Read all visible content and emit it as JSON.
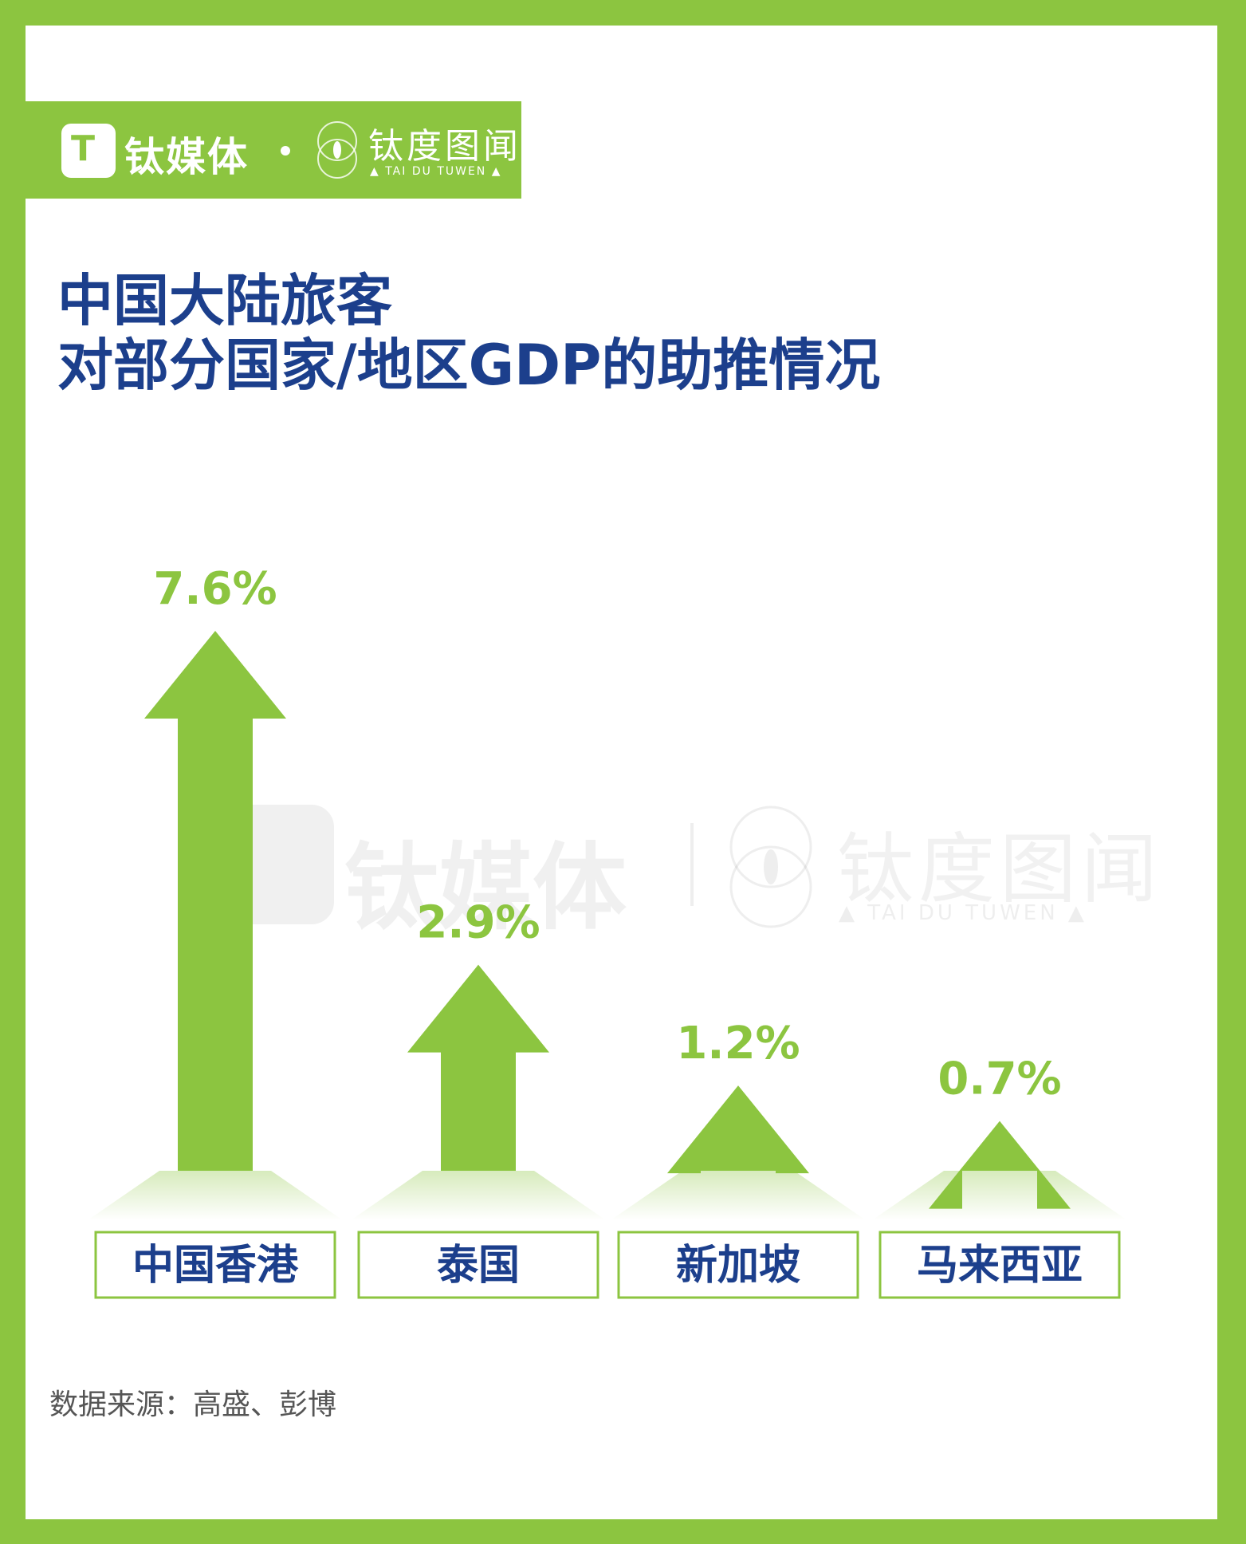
{
  "brand": {
    "name": "钛媒体",
    "logo_glyph": "T",
    "partner_name": "钛度图闻",
    "partner_sub": "▲ TAI DU TUWEN ▲"
  },
  "title": {
    "line1": "中国大陆旅客",
    "line2": "对部分国家/地区GDP的助推情况"
  },
  "watermark": {
    "brand": "钛媒体",
    "partner": "钛度图闻",
    "partner_sub": "▲ TAI DU TUWEN ▲"
  },
  "chart_data": {
    "type": "bar",
    "title": "中国大陆旅客 对部分国家/地区GDP的助推情况",
    "categories": [
      "中国香港",
      "泰国",
      "新加坡",
      "马来西亚"
    ],
    "values": [
      7.6,
      2.9,
      1.2,
      0.7
    ],
    "value_labels": [
      "7.6%",
      "2.9%",
      "1.2%",
      "0.7%"
    ],
    "unit": "%",
    "ylim": [
      0,
      7.6
    ],
    "grid": false,
    "legend": "none"
  },
  "source": "数据来源：高盛、彭博",
  "colors": {
    "accent": "#8cc540",
    "title": "#1c3f8c",
    "label": "#1c3f8c",
    "value": "#8cc540",
    "source": "#555555"
  }
}
